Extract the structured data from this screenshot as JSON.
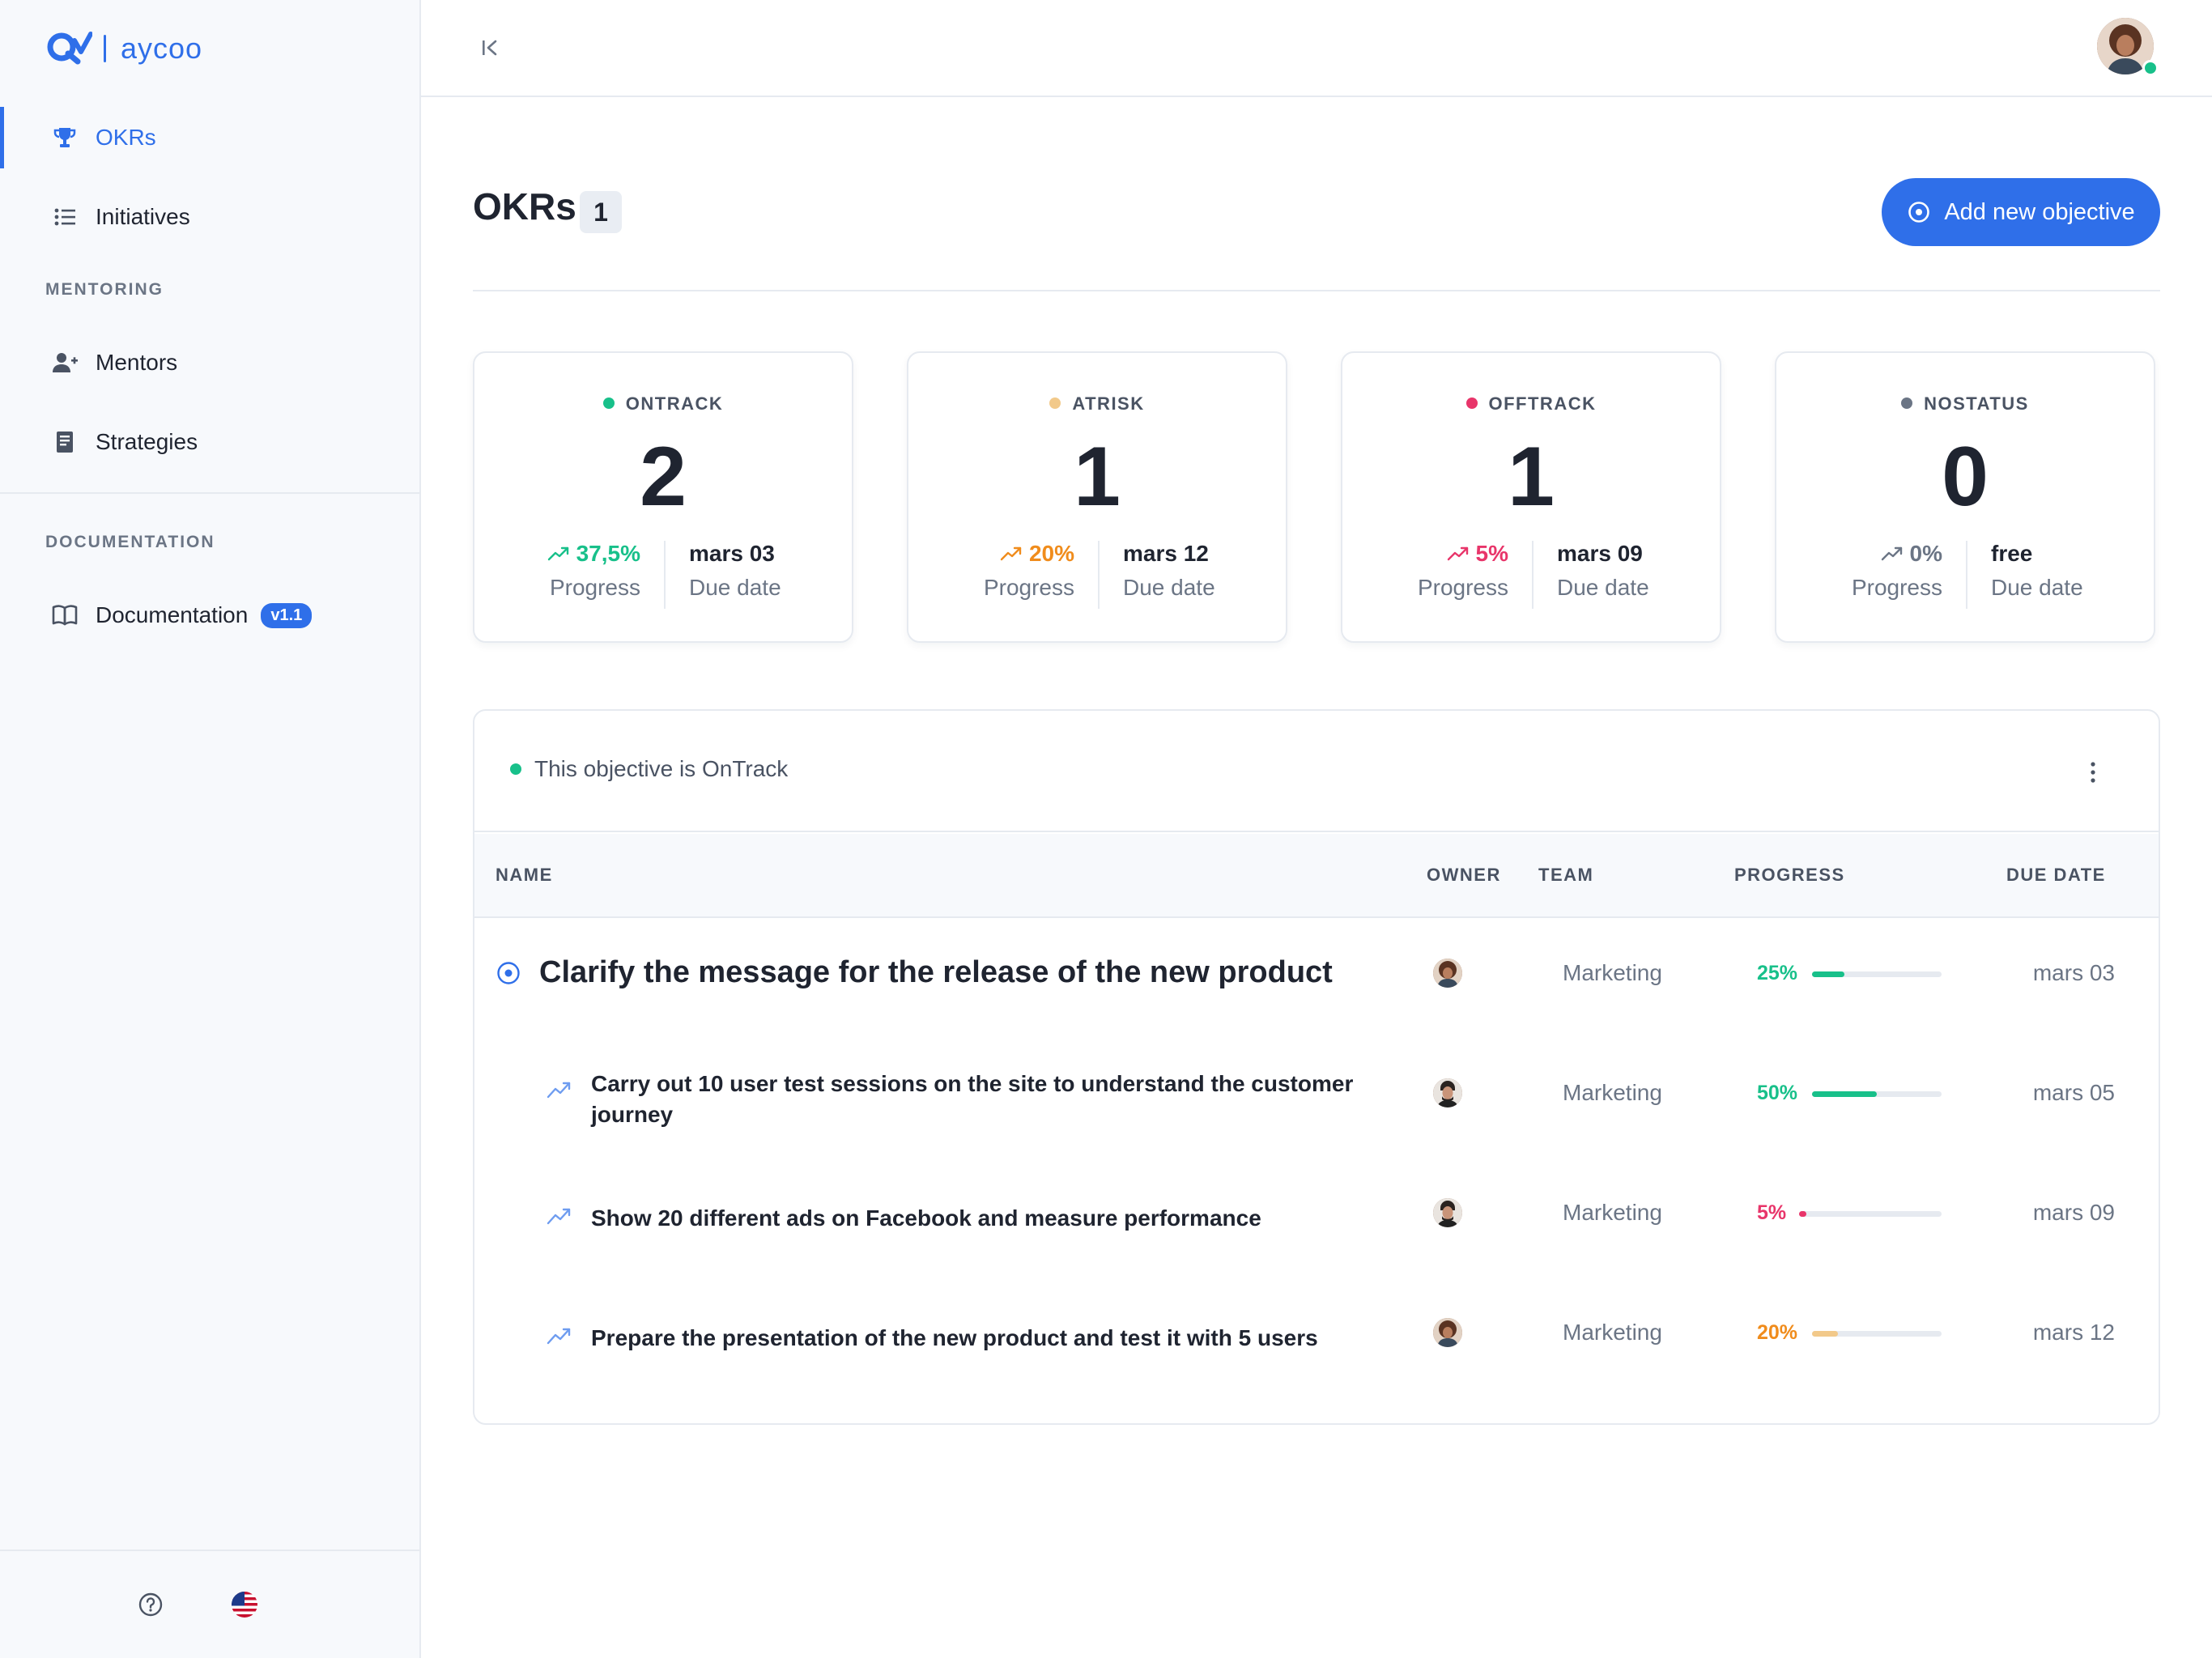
{
  "app": {
    "brand": "aycoo"
  },
  "sidebar": {
    "items": [
      {
        "label": "OKRs",
        "icon": "trophy-icon",
        "active": true
      },
      {
        "label": "Initiatives",
        "icon": "list-icon",
        "active": false
      }
    ],
    "mentoring": {
      "label": "MENTORING",
      "items": [
        {
          "label": "Mentors",
          "icon": "add-user-icon"
        },
        {
          "label": "Strategies",
          "icon": "book-icon"
        }
      ]
    },
    "documentation": {
      "label": "DOCUMENTATION",
      "item": {
        "label": "Documentation",
        "icon": "open-book-icon",
        "version": "v1.1"
      }
    },
    "footer": {
      "help_icon": "help-circle-icon",
      "language_icon": "us-flag-icon"
    }
  },
  "topbar": {
    "collapse_icon": "collapse-left-icon",
    "avatar": "user-avatar",
    "status": "online"
  },
  "page": {
    "title": "OKRs",
    "count": "1",
    "add_button": "Add new objective"
  },
  "colors": {
    "accent": "#2f6fe9",
    "ontrack": "#18c08a",
    "atrisk": "#f08c1c",
    "offtrack": "#e8356a",
    "nostatus": "#6b7585"
  },
  "stats": [
    {
      "status": "ONTRACK",
      "dot": "#18c08a",
      "value": "2",
      "progress": "37,5%",
      "progress_color": "#18c08a",
      "progress_label": "Progress",
      "due": "mars 03",
      "due_label": "Due date"
    },
    {
      "status": "ATRISK",
      "dot": "#f2c98a",
      "value": "1",
      "progress": "20%",
      "progress_color": "#f08c1c",
      "progress_label": "Progress",
      "due": "mars 12",
      "due_label": "Due date"
    },
    {
      "status": "OFFTRACK",
      "dot": "#e8356a",
      "value": "1",
      "progress": "5%",
      "progress_color": "#e8356a",
      "progress_label": "Progress",
      "due": "mars 09",
      "due_label": "Due date"
    },
    {
      "status": "NOSTATUS",
      "dot": "#6b7585",
      "value": "0",
      "progress": "0%",
      "progress_color": "#6b7585",
      "progress_label": "Progress",
      "due": "free",
      "due_label": "Due date"
    }
  ],
  "objective": {
    "status_text": "This objective is OnTrack",
    "columns": {
      "name": "NAME",
      "owner": "OWNER",
      "team": "TEAM",
      "progress": "PROGRESS",
      "due": "DUE DATE"
    },
    "main": {
      "title": "Clarify the message for the release of the new product",
      "team": "Marketing",
      "progress": "25%",
      "progress_value": 0.25,
      "color": "#18c08a",
      "due": "mars 03"
    },
    "key_results": [
      {
        "title_line1": "Carry out 10 user test sessions on the site to understand the customer",
        "title_line2": "journey",
        "team": "Marketing",
        "progress": "50%",
        "progress_value": 0.5,
        "color": "#18c08a",
        "due": "mars 05"
      },
      {
        "title_line1": "Show 20 different ads on Facebook and measure performance",
        "title_line2": "",
        "team": "Marketing",
        "progress": "5%",
        "progress_value": 0.05,
        "color": "#e8356a",
        "due": "mars 09"
      },
      {
        "title_line1": "Prepare the presentation of the new product and test it with 5 users",
        "title_line2": "",
        "team": "Marketing",
        "progress": "20%",
        "progress_value": 0.2,
        "color": "#f2c98a",
        "due": "mars 12"
      }
    ]
  }
}
